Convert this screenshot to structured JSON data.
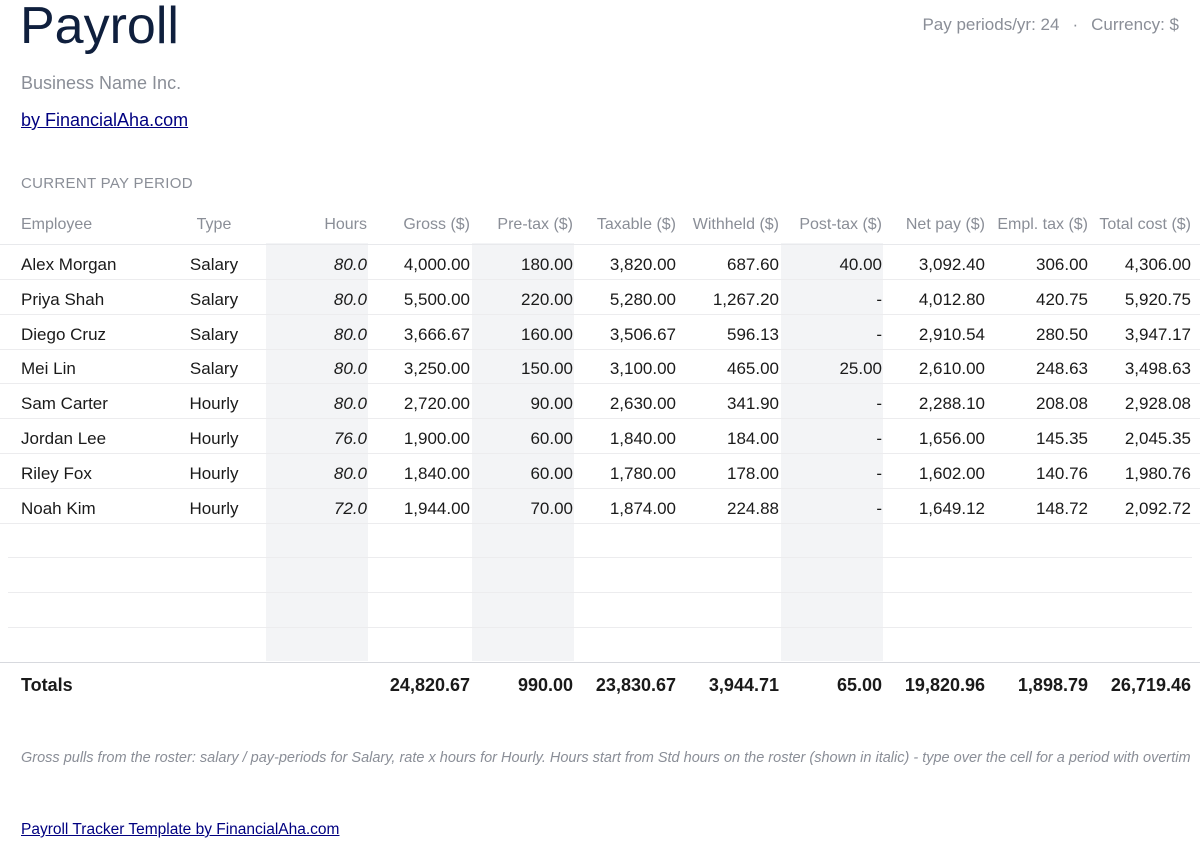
{
  "header": {
    "title": "Payroll",
    "pay_periods": "Pay periods/yr: 24",
    "separator": "·",
    "currency": "Currency: $",
    "business_name": "Business Name Inc.",
    "byline": "by FinancialAha.com"
  },
  "section_label": "CURRENT PAY PERIOD",
  "table": {
    "columns": [
      "Employee",
      "Type",
      "Hours",
      "Gross ($)",
      "Pre-tax ($)",
      "Taxable ($)",
      "Withheld ($)",
      "Post-tax ($)",
      "Net pay ($)",
      "Empl. tax ($)",
      "Total cost ($)"
    ],
    "rows": [
      [
        "Alex Morgan",
        "Salary",
        "80.0",
        "4,000.00",
        "180.00",
        "3,820.00",
        "687.60",
        "40.00",
        "3,092.40",
        "306.00",
        "4,306.00"
      ],
      [
        "Priya Shah",
        "Salary",
        "80.0",
        "5,500.00",
        "220.00",
        "5,280.00",
        "1,267.20",
        "-",
        "4,012.80",
        "420.75",
        "5,920.75"
      ],
      [
        "Diego Cruz",
        "Salary",
        "80.0",
        "3,666.67",
        "160.00",
        "3,506.67",
        "596.13",
        "-",
        "2,910.54",
        "280.50",
        "3,947.17"
      ],
      [
        "Mei Lin",
        "Salary",
        "80.0",
        "3,250.00",
        "150.00",
        "3,100.00",
        "465.00",
        "25.00",
        "2,610.00",
        "248.63",
        "3,498.63"
      ],
      [
        "Sam Carter",
        "Hourly",
        "80.0",
        "2,720.00",
        "90.00",
        "2,630.00",
        "341.90",
        "-",
        "2,288.10",
        "208.08",
        "2,928.08"
      ],
      [
        "Jordan Lee",
        "Hourly",
        "76.0",
        "1,900.00",
        "60.00",
        "1,840.00",
        "184.00",
        "-",
        "1,656.00",
        "145.35",
        "2,045.35"
      ],
      [
        "Riley Fox",
        "Hourly",
        "80.0",
        "1,840.00",
        "60.00",
        "1,780.00",
        "178.00",
        "-",
        "1,602.00",
        "140.76",
        "1,980.76"
      ],
      [
        "Noah Kim",
        "Hourly",
        "72.0",
        "1,944.00",
        "70.00",
        "1,874.00",
        "224.88",
        "-",
        "1,649.12",
        "148.72",
        "2,092.72"
      ]
    ],
    "totals": [
      "Totals",
      "",
      "",
      "24,820.67",
      "990.00",
      "23,830.67",
      "3,944.71",
      "65.00",
      "19,820.96",
      "1,898.79",
      "26,719.46"
    ]
  },
  "note": "Gross pulls from the roster: salary / pay-periods for Salary, rate x hours for Hourly. Hours start from Std hours on the roster (shown in italic) - type over the cell for a period with overtime or",
  "footer_link": "Payroll Tracker Template by FinancialAha.com"
}
